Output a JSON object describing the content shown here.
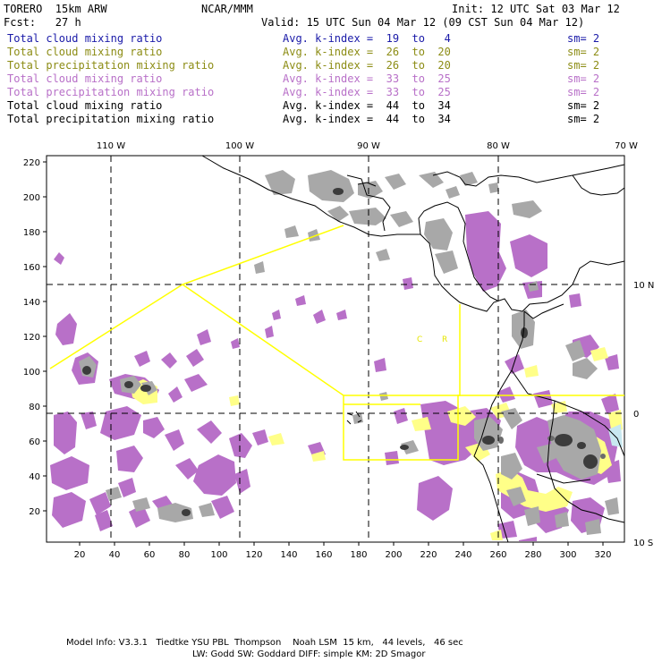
{
  "header": {
    "model": "TORERO  15km ARW",
    "org": "NCAR/MMM",
    "init": "Init: 12 UTC Sat 03 Mar 12",
    "fcst": "Fcst:   27 h",
    "valid": "Valid: 15 UTC Sun 04 Mar 12 (09 CST Sun 04 Mar 12)"
  },
  "legend": [
    {
      "name": "Total cloud mixing ratio",
      "kidx": "Avg. k-index =  19  to   4",
      "sm": "sm= 2",
      "color": "#1a1aa8"
    },
    {
      "name": "Total cloud mixing ratio",
      "kidx": "Avg. k-index =  26  to  20",
      "sm": "sm= 2",
      "color": "#8c8c14"
    },
    {
      "name": "Total precipitation mixing ratio",
      "kidx": "Avg. k-index =  26  to  20",
      "sm": "sm= 2",
      "color": "#8c8c14"
    },
    {
      "name": "Total cloud mixing ratio",
      "kidx": "Avg. k-index =  33  to  25",
      "sm": "sm= 2",
      "color": "#b870c8"
    },
    {
      "name": "Total precipitation mixing ratio",
      "kidx": "Avg. k-index =  33  to  25",
      "sm": "sm= 2",
      "color": "#b870c8"
    },
    {
      "name": "Total cloud mixing ratio",
      "kidx": "Avg. k-index =  44  to  34",
      "sm": "sm= 2",
      "color": "#000000"
    },
    {
      "name": "Total precipitation mixing ratio",
      "kidx": "Avg. k-index =  44  to  34",
      "sm": "sm= 2",
      "color": "#000000"
    }
  ],
  "axes": {
    "top_lon": [
      "110 W",
      "100 W",
      "90 W",
      "80 W",
      "70 W"
    ],
    "right_lat": [
      "10 N",
      "0",
      "10 S"
    ],
    "y_ticks": [
      "220",
      "200",
      "180",
      "160",
      "140",
      "120",
      "100",
      "80",
      "60",
      "40",
      "20"
    ],
    "x_ticks": [
      "20",
      "40",
      "60",
      "80",
      "100",
      "120",
      "140",
      "160",
      "180",
      "200",
      "220",
      "240",
      "260",
      "280",
      "300",
      "320"
    ]
  },
  "map_labels": [
    "C",
    "R"
  ],
  "footer": {
    "line1": "Model Info: V3.3.1   Tiedtke YSU PBL  Thompson    Noah LSM  15 km,   44 levels,   46 sec",
    "line2": "LW: Godd SW: Goddard DIFF: simple KM: 2D Smagor"
  },
  "colors": {
    "purple": "#b870c8",
    "gray": "#a8a8a8",
    "dark": "#3c3c3c",
    "yellow": "#ffff88",
    "border": "#ffff00"
  }
}
